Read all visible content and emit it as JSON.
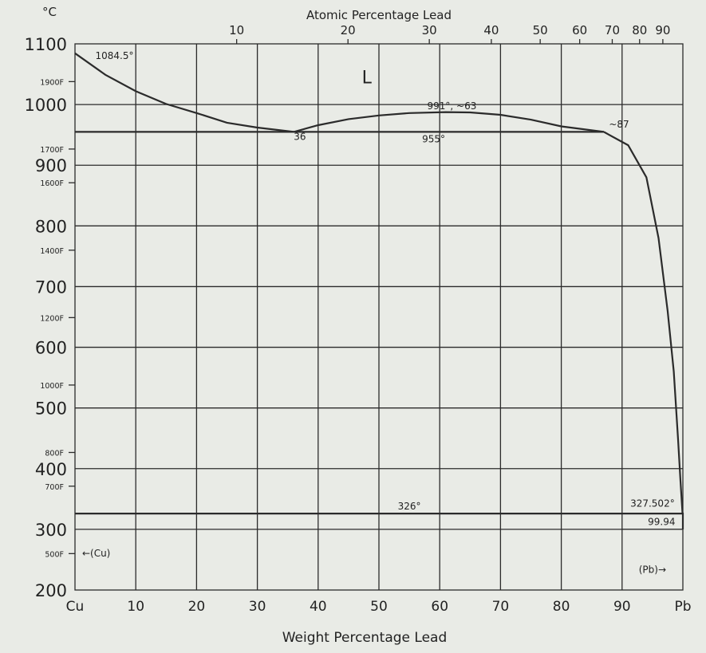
{
  "chart_data": {
    "type": "line",
    "title": "",
    "xlabel": "Weight Percentage Lead",
    "x2label": "Atomic Percentage Lead",
    "ylabel": "°C",
    "xlim": [
      0,
      100
    ],
    "ylim": [
      200,
      1100
    ],
    "grid": true,
    "x_ticks": [
      {
        "value": 0,
        "label": "Cu"
      },
      {
        "value": 10,
        "label": "10"
      },
      {
        "value": 20,
        "label": "20"
      },
      {
        "value": 30,
        "label": "30"
      },
      {
        "value": 40,
        "label": "40"
      },
      {
        "value": 50,
        "label": "50"
      },
      {
        "value": 60,
        "label": "60"
      },
      {
        "value": 70,
        "label": "70"
      },
      {
        "value": 80,
        "label": "80"
      },
      {
        "value": 90,
        "label": "90"
      },
      {
        "value": 100,
        "label": "Pb"
      }
    ],
    "x2_ticks": [
      {
        "value": 10,
        "label": "10"
      },
      {
        "value": 20,
        "label": "20"
      },
      {
        "value": 30,
        "label": "30"
      },
      {
        "value": 40,
        "label": "40"
      },
      {
        "value": 50,
        "label": "50"
      },
      {
        "value": 60,
        "label": "60"
      },
      {
        "value": 70,
        "label": "70"
      },
      {
        "value": 80,
        "label": "80"
      },
      {
        "value": 90,
        "label": "90"
      }
    ],
    "y_ticks": [
      {
        "value": 200,
        "label": "200"
      },
      {
        "value": 300,
        "label": "300"
      },
      {
        "value": 400,
        "label": "400"
      },
      {
        "value": 500,
        "label": "500"
      },
      {
        "value": 600,
        "label": "600"
      },
      {
        "value": 700,
        "label": "700"
      },
      {
        "value": 800,
        "label": "800"
      },
      {
        "value": 900,
        "label": "900"
      },
      {
        "value": 1000,
        "label": "1000"
      },
      {
        "value": 1100,
        "label": "1100"
      }
    ],
    "f_ticks": [
      {
        "value": 500,
        "label": "500F"
      },
      {
        "value": 700,
        "label": "700F"
      },
      {
        "value": 800,
        "label": "800F"
      },
      {
        "value": 1000,
        "label": "1000F"
      },
      {
        "value": 1200,
        "label": "1200F"
      },
      {
        "value": 1400,
        "label": "1400F"
      },
      {
        "value": 1600,
        "label": "1600F"
      },
      {
        "value": 1700,
        "label": "1700F"
      },
      {
        "value": 1900,
        "label": "1900F"
      }
    ],
    "series": [
      {
        "values": [
          [
            0,
            1084.5
          ],
          [
            5,
            1049
          ],
          [
            10,
            1022
          ],
          [
            15,
            1001
          ],
          [
            20,
            986
          ],
          [
            25,
            970
          ],
          [
            30,
            962
          ],
          [
            36,
            955
          ]
        ]
      },
      {
        "values": [
          [
            36,
            955
          ],
          [
            40,
            966
          ],
          [
            45,
            976
          ],
          [
            50,
            982
          ],
          [
            55,
            986
          ],
          [
            61,
            987.5
          ],
          [
            65,
            987
          ],
          [
            70,
            983
          ],
          [
            75,
            975
          ],
          [
            80,
            964
          ],
          [
            87,
            955
          ]
        ]
      },
      {
        "values": [
          [
            87,
            955
          ],
          [
            91,
            933
          ],
          [
            94,
            880
          ],
          [
            96,
            780
          ],
          [
            97.5,
            660
          ],
          [
            98.5,
            560
          ],
          [
            99.2,
            450
          ],
          [
            99.6,
            380
          ],
          [
            99.94,
            327.5
          ]
        ]
      },
      {
        "values": [
          [
            0,
            955
          ],
          [
            87,
            955
          ]
        ]
      },
      {
        "values": [
          [
            0,
            326
          ],
          [
            100,
            326
          ]
        ]
      },
      {
        "values": [
          [
            100,
            327.502
          ],
          [
            100,
            300
          ]
        ]
      }
    ],
    "annotations": [
      {
        "text": "1084.5°",
        "x": 6.5,
        "y": 1075
      },
      {
        "text": "L",
        "x": 48,
        "y": 1035
      },
      {
        "text": "991°, ~63",
        "x": 62,
        "y": 992
      },
      {
        "text": "36",
        "x": 37,
        "y": 942
      },
      {
        "text": "955°",
        "x": 59,
        "y": 938
      },
      {
        "text": "~87",
        "x": 89.5,
        "y": 962
      },
      {
        "text": "326°",
        "x": 55,
        "y": 333
      },
      {
        "text": "327.502°",
        "x": 95,
        "y": 337
      },
      {
        "text": "99.94",
        "x": 96.5,
        "y": 307
      },
      {
        "text": "←(Cu)",
        "x": 3.5,
        "y": 255
      },
      {
        "text": "(Pb)→",
        "x": 95,
        "y": 228
      }
    ]
  }
}
